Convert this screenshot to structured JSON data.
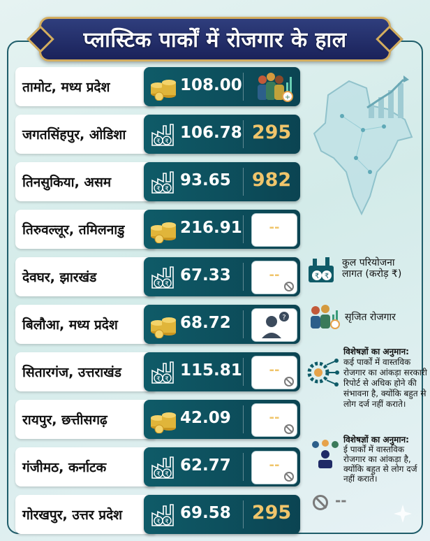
{
  "title": "प्लास्टिक पार्कों में रोजगार के हाल",
  "rows": [
    {
      "place": "तामोट, मध्य प्रदेश",
      "cost": "108.00",
      "jobs": "",
      "cost_icon": "coins-icon",
      "jobs_kind": "workers"
    },
    {
      "place": "जगतसिंहपुर, ओडिशा",
      "cost": "106.78",
      "jobs": "295",
      "cost_icon": "factory-rupee-icon",
      "jobs_kind": "value"
    },
    {
      "place": "तिनसुकिया, असम",
      "cost": "93.65",
      "jobs": "982",
      "cost_icon": "factory-rupee-icon",
      "jobs_kind": "value"
    },
    {
      "place": "तिरुवल्लूर, तमिलनाडु",
      "cost": "216.91",
      "jobs": "--",
      "cost_icon": "coins-icon",
      "jobs_kind": "dash"
    },
    {
      "place": "देवघर, झारखंड",
      "cost": "67.33",
      "jobs": "--",
      "cost_icon": "factory-rupee-icon",
      "jobs_kind": "dash-na"
    },
    {
      "place": "बिलौआ, मध्य प्रदेश",
      "cost": "68.72",
      "jobs": "",
      "cost_icon": "coins-icon",
      "jobs_kind": "person"
    },
    {
      "place": "सितारगंज, उत्तराखंड",
      "cost": "115.81",
      "jobs": "--",
      "cost_icon": "factory-rupee-icon",
      "jobs_kind": "dash-na"
    },
    {
      "place": "रायपुर, छत्तीसगढ़",
      "cost": "42.09",
      "jobs": "--",
      "cost_icon": "coins-icon",
      "jobs_kind": "dash-na"
    },
    {
      "place": "गंजीमठ, कर्नाटक",
      "cost": "62.77",
      "jobs": "--",
      "cost_icon": "factory-rupee-icon",
      "jobs_kind": "dash-na"
    },
    {
      "place": "गोरखपुर, उत्तर प्रदेश",
      "cost": "69.58",
      "jobs": "295",
      "cost_icon": "factory-rupee-icon",
      "jobs_kind": "value"
    }
  ],
  "legend": {
    "cost_line1": "कुल परियोजना",
    "cost_line2": "लागत (करोड़ ₹)",
    "jobs": "सृजित रोजगार",
    "expert1_title": "विशेषज्ञों का अनुमान:",
    "expert1_l1": "कई पार्कों में वास्तविक",
    "expert1_l2": "रोजगार का आंकड़ा सरकारी",
    "expert1_l3": "रिपोर्ट से अधिक होने की",
    "expert1_l4": "संभावना है, क्योंकि बहुत से",
    "expert1_l5": "लोग दर्ज नहीं कराते।",
    "expert2_title": "विशेषज्ञों का अनुमान:",
    "expert2_l1": "ई पार्कों में वास्तविक",
    "expert2_l2": "रोजगार का आंकड़ा है,",
    "expert2_l3": "क्योंकि बहुत से लोग दर्ज",
    "expert2_l4": "नहीं कराते।",
    "na_dash": "--"
  },
  "colors": {
    "teal": "#0f5b68",
    "gold": "#f0c56b",
    "navy": "#1f2a66",
    "border": "#d3ad5e"
  }
}
